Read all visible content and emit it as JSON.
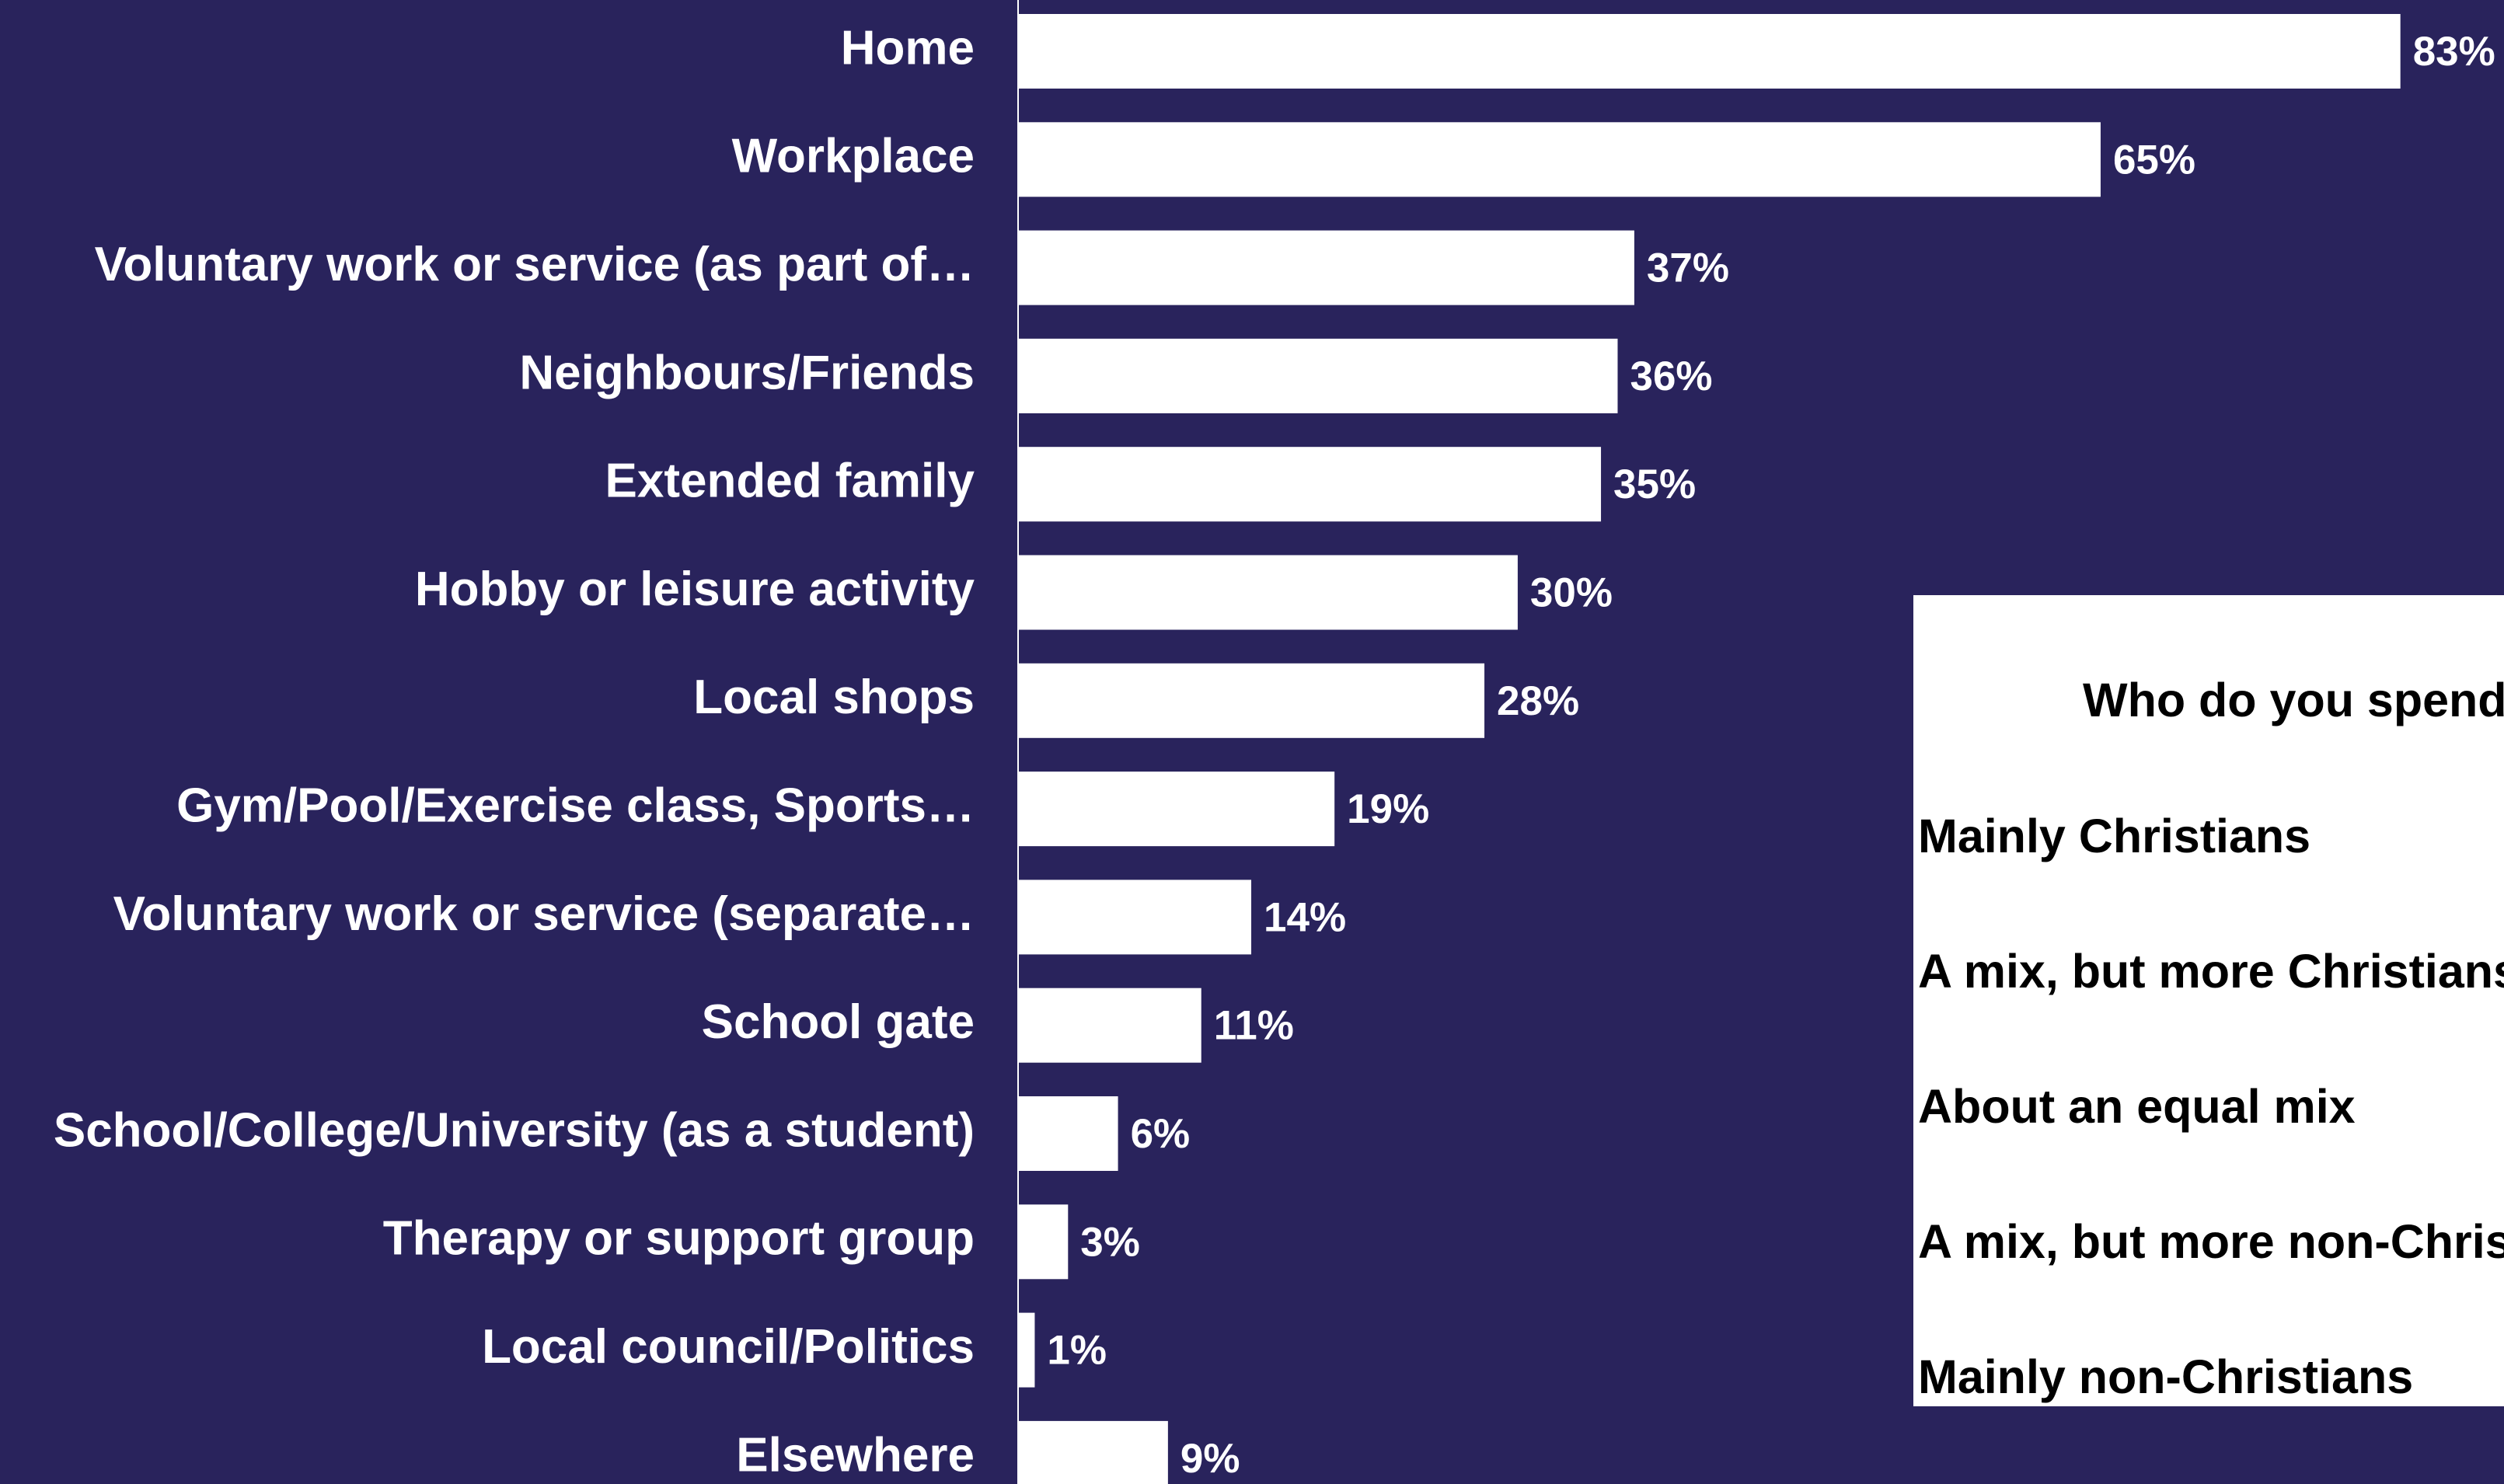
{
  "chart_data": {
    "type": "bar",
    "orientation": "horizontal",
    "categories": [
      "Home",
      "Workplace",
      "Voluntary work or service (as part of…",
      "Neighbours/Friends",
      "Extended family",
      "Hobby or leisure activity",
      "Local shops",
      "Gym/Pool/Exercise class, Sports…",
      "Voluntary work or service (separate…",
      "School gate",
      "School/College/University (as a student)",
      "Therapy or support group",
      "Local council/Politics",
      "Elsewhere"
    ],
    "values": [
      83,
      65,
      37,
      36,
      35,
      30,
      28,
      19,
      14,
      11,
      6,
      3,
      1,
      9
    ],
    "value_labels": [
      "83%",
      "65%",
      "37%",
      "36%",
      "35%",
      "30%",
      "28%",
      "19%",
      "14%",
      "11%",
      "6%",
      "3%",
      "1%",
      "9%"
    ],
    "unit": "%",
    "xlim": [
      0,
      100
    ],
    "bar_color": "#ffffff",
    "background_color": "#29235c",
    "grid": false
  },
  "legend": {
    "title": "Who do you spend",
    "items": [
      "Mainly Christians",
      "A mix, but more Christians",
      "About an equal mix",
      "A mix, but more non-Christians",
      "Mainly non-Christians"
    ]
  }
}
